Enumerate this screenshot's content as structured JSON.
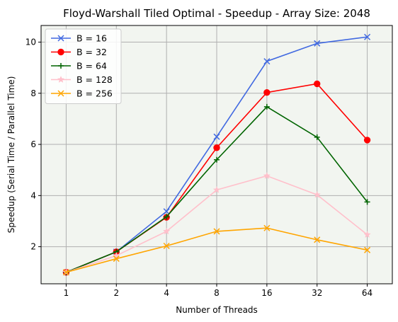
{
  "chart_data": {
    "type": "line",
    "title": "Floyd-Warshall Tiled Optimal - Speedup - Array Size: 2048",
    "xlabel": "Number of Threads",
    "ylabel": "Speedup (Serial Time / Parallel Time)",
    "x": [
      1,
      2,
      4,
      8,
      16,
      32,
      64
    ],
    "x_scale": "log2",
    "ylim": [
      0.55,
      10.65
    ],
    "yticks": [
      2,
      4,
      6,
      8,
      10
    ],
    "grid": true,
    "legend_position": "top-left",
    "background_color": "#f2f5f0",
    "series": [
      {
        "name": "B = 16",
        "color": "#4169e1",
        "marker": "x",
        "values": [
          1.0,
          1.8,
          3.38,
          6.3,
          9.25,
          9.95,
          10.2
        ]
      },
      {
        "name": "B = 32",
        "color": "#ff0000",
        "marker": "o",
        "values": [
          1.0,
          1.8,
          3.15,
          5.87,
          8.03,
          8.37,
          6.17
        ]
      },
      {
        "name": "B = 64",
        "color": "#006400",
        "marker": "+",
        "values": [
          1.0,
          1.8,
          3.17,
          5.4,
          7.47,
          6.28,
          3.75
        ]
      },
      {
        "name": "B = 128",
        "color": "#ffc0cb",
        "marker": "*",
        "values": [
          1.0,
          1.65,
          2.6,
          4.22,
          4.77,
          4.03,
          2.47
        ]
      },
      {
        "name": "B = 256",
        "color": "#ffa500",
        "marker": "x",
        "values": [
          1.0,
          1.53,
          2.03,
          2.6,
          2.73,
          2.27,
          1.87
        ]
      }
    ]
  }
}
